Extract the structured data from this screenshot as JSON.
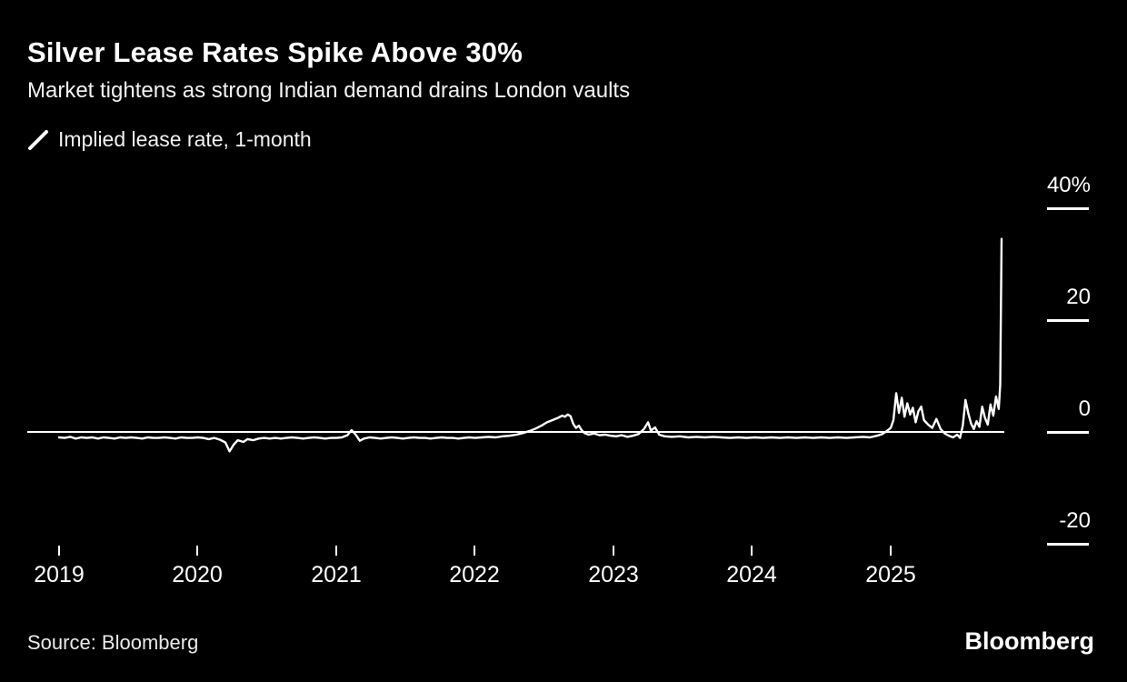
{
  "header": {
    "title": "Silver Lease Rates Spike Above 30%",
    "subtitle": "Market tightens as strong Indian demand drains London vaults"
  },
  "legend": {
    "label": "Implied lease rate, 1-month"
  },
  "footer": {
    "source": "Source: Bloomberg",
    "logo": "Bloomberg"
  },
  "colors": {
    "background": "#000000",
    "text": "#ffffff",
    "line": "#ffffff"
  },
  "chart_data": {
    "type": "line",
    "title": "Silver Lease Rates Spike Above 30%",
    "subtitle": "Market tightens as strong Indian demand drains London vaults",
    "series_name": "Implied lease rate, 1-month",
    "unit": "%",
    "xlabel": "",
    "ylabel": "Implied lease rate (%)",
    "x_range": [
      2019.0,
      2025.85
    ],
    "ylim": [
      -25,
      45
    ],
    "grid": "right-axis ticks only, zero line across plot",
    "legend_position": "top-left",
    "y_ticks": [
      {
        "value": 40,
        "label": "40%"
      },
      {
        "value": 20,
        "label": "20"
      },
      {
        "value": 0,
        "label": "0"
      },
      {
        "value": -20,
        "label": "-20"
      }
    ],
    "x_ticks": [
      {
        "value": 2019,
        "label": "2019"
      },
      {
        "value": 2020,
        "label": "2020"
      },
      {
        "value": 2021,
        "label": "2021"
      },
      {
        "value": 2022,
        "label": "2022"
      },
      {
        "value": 2023,
        "label": "2023"
      },
      {
        "value": 2024,
        "label": "2024"
      },
      {
        "value": 2025,
        "label": "2025"
      }
    ],
    "points": [
      [
        2019.0,
        -0.9
      ],
      [
        2019.04,
        -1.0
      ],
      [
        2019.08,
        -0.8
      ],
      [
        2019.12,
        -1.1
      ],
      [
        2019.16,
        -0.9
      ],
      [
        2019.2,
        -1.0
      ],
      [
        2019.24,
        -0.9
      ],
      [
        2019.28,
        -1.1
      ],
      [
        2019.32,
        -0.9
      ],
      [
        2019.36,
        -1.0
      ],
      [
        2019.4,
        -1.1
      ],
      [
        2019.44,
        -0.9
      ],
      [
        2019.48,
        -1.0
      ],
      [
        2019.52,
        -0.9
      ],
      [
        2019.56,
        -1.0
      ],
      [
        2019.6,
        -1.1
      ],
      [
        2019.64,
        -0.9
      ],
      [
        2019.68,
        -1.0
      ],
      [
        2019.72,
        -1.0
      ],
      [
        2019.76,
        -0.9
      ],
      [
        2019.8,
        -1.0
      ],
      [
        2019.84,
        -1.1
      ],
      [
        2019.88,
        -0.9
      ],
      [
        2019.92,
        -1.0
      ],
      [
        2019.96,
        -1.0
      ],
      [
        2020.0,
        -0.9
      ],
      [
        2020.04,
        -1.0
      ],
      [
        2020.08,
        -1.2
      ],
      [
        2020.12,
        -1.0
      ],
      [
        2020.16,
        -1.3
      ],
      [
        2020.2,
        -1.8
      ],
      [
        2020.23,
        -3.4
      ],
      [
        2020.26,
        -2.2
      ],
      [
        2020.29,
        -1.4
      ],
      [
        2020.33,
        -1.7
      ],
      [
        2020.36,
        -1.2
      ],
      [
        2020.4,
        -1.4
      ],
      [
        2020.44,
        -1.1
      ],
      [
        2020.48,
        -1.0
      ],
      [
        2020.52,
        -1.1
      ],
      [
        2020.56,
        -1.0
      ],
      [
        2020.6,
        -1.1
      ],
      [
        2020.64,
        -1.0
      ],
      [
        2020.68,
        -0.9
      ],
      [
        2020.72,
        -1.0
      ],
      [
        2020.76,
        -1.1
      ],
      [
        2020.8,
        -1.0
      ],
      [
        2020.84,
        -0.9
      ],
      [
        2020.88,
        -1.0
      ],
      [
        2020.92,
        -1.1
      ],
      [
        2020.96,
        -1.0
      ],
      [
        2021.0,
        -1.0
      ],
      [
        2021.04,
        -0.9
      ],
      [
        2021.08,
        -0.5
      ],
      [
        2021.11,
        0.4
      ],
      [
        2021.14,
        -0.4
      ],
      [
        2021.17,
        -1.5
      ],
      [
        2021.2,
        -1.1
      ],
      [
        2021.24,
        -0.9
      ],
      [
        2021.28,
        -1.0
      ],
      [
        2021.32,
        -1.1
      ],
      [
        2021.36,
        -1.0
      ],
      [
        2021.4,
        -0.9
      ],
      [
        2021.44,
        -1.0
      ],
      [
        2021.48,
        -1.1
      ],
      [
        2021.52,
        -1.0
      ],
      [
        2021.56,
        -0.9
      ],
      [
        2021.6,
        -1.0
      ],
      [
        2021.64,
        -1.0
      ],
      [
        2021.68,
        -1.1
      ],
      [
        2021.72,
        -1.0
      ],
      [
        2021.76,
        -0.9
      ],
      [
        2021.8,
        -1.0
      ],
      [
        2021.84,
        -1.0
      ],
      [
        2021.88,
        -1.1
      ],
      [
        2021.92,
        -1.0
      ],
      [
        2021.96,
        -0.9
      ],
      [
        2022.0,
        -1.0
      ],
      [
        2022.05,
        -0.9
      ],
      [
        2022.1,
        -0.8
      ],
      [
        2022.15,
        -0.9
      ],
      [
        2022.2,
        -0.7
      ],
      [
        2022.25,
        -0.6
      ],
      [
        2022.3,
        -0.4
      ],
      [
        2022.35,
        -0.1
      ],
      [
        2022.4,
        0.3
      ],
      [
        2022.44,
        0.7
      ],
      [
        2022.48,
        1.2
      ],
      [
        2022.52,
        1.8
      ],
      [
        2022.56,
        2.2
      ],
      [
        2022.6,
        2.6
      ],
      [
        2022.63,
        3.0
      ],
      [
        2022.65,
        2.8
      ],
      [
        2022.67,
        3.2
      ],
      [
        2022.69,
        2.9
      ],
      [
        2022.71,
        1.5
      ],
      [
        2022.73,
        0.8
      ],
      [
        2022.75,
        1.2
      ],
      [
        2022.77,
        0.4
      ],
      [
        2022.79,
        -0.1
      ],
      [
        2022.82,
        -0.4
      ],
      [
        2022.86,
        -0.2
      ],
      [
        2022.9,
        -0.5
      ],
      [
        2022.94,
        -0.4
      ],
      [
        2022.98,
        -0.6
      ],
      [
        2023.02,
        -0.7
      ],
      [
        2023.06,
        -0.5
      ],
      [
        2023.1,
        -0.8
      ],
      [
        2023.14,
        -0.6
      ],
      [
        2023.18,
        -0.3
      ],
      [
        2023.22,
        0.6
      ],
      [
        2023.25,
        1.8
      ],
      [
        2023.27,
        0.3
      ],
      [
        2023.3,
        0.9
      ],
      [
        2023.33,
        -0.4
      ],
      [
        2023.37,
        -0.7
      ],
      [
        2023.42,
        -0.8
      ],
      [
        2023.48,
        -0.7
      ],
      [
        2023.54,
        -0.9
      ],
      [
        2023.6,
        -0.8
      ],
      [
        2023.66,
        -0.9
      ],
      [
        2023.72,
        -0.8
      ],
      [
        2023.78,
        -0.9
      ],
      [
        2023.84,
        -1.0
      ],
      [
        2023.9,
        -0.9
      ],
      [
        2023.96,
        -1.0
      ],
      [
        2024.02,
        -0.9
      ],
      [
        2024.08,
        -1.0
      ],
      [
        2024.14,
        -0.9
      ],
      [
        2024.2,
        -1.0
      ],
      [
        2024.26,
        -0.9
      ],
      [
        2024.32,
        -1.0
      ],
      [
        2024.38,
        -0.9
      ],
      [
        2024.44,
        -1.0
      ],
      [
        2024.5,
        -0.9
      ],
      [
        2024.56,
        -1.0
      ],
      [
        2024.62,
        -0.9
      ],
      [
        2024.68,
        -1.0
      ],
      [
        2024.74,
        -0.9
      ],
      [
        2024.8,
        -0.8
      ],
      [
        2024.85,
        -0.9
      ],
      [
        2024.9,
        -0.6
      ],
      [
        2024.94,
        -0.3
      ],
      [
        2024.97,
        0.2
      ],
      [
        2025.0,
        0.8
      ],
      [
        2025.02,
        2.2
      ],
      [
        2025.04,
        7.0
      ],
      [
        2025.06,
        3.5
      ],
      [
        2025.08,
        6.2
      ],
      [
        2025.1,
        2.8
      ],
      [
        2025.12,
        5.2
      ],
      [
        2025.14,
        3.2
      ],
      [
        2025.16,
        4.4
      ],
      [
        2025.18,
        1.8
      ],
      [
        2025.2,
        3.8
      ],
      [
        2025.22,
        4.6
      ],
      [
        2025.24,
        2.2
      ],
      [
        2025.27,
        1.4
      ],
      [
        2025.3,
        0.8
      ],
      [
        2025.33,
        2.4
      ],
      [
        2025.36,
        0.6
      ],
      [
        2025.39,
        -0.2
      ],
      [
        2025.42,
        -0.6
      ],
      [
        2025.45,
        -0.9
      ],
      [
        2025.48,
        -0.4
      ],
      [
        2025.5,
        -1.0
      ],
      [
        2025.52,
        1.2
      ],
      [
        2025.54,
        5.8
      ],
      [
        2025.56,
        3.4
      ],
      [
        2025.58,
        1.6
      ],
      [
        2025.6,
        0.6
      ],
      [
        2025.62,
        2.0
      ],
      [
        2025.64,
        1.0
      ],
      [
        2025.66,
        4.6
      ],
      [
        2025.68,
        2.6
      ],
      [
        2025.7,
        1.4
      ],
      [
        2025.72,
        5.0
      ],
      [
        2025.74,
        3.0
      ],
      [
        2025.76,
        6.4
      ],
      [
        2025.78,
        4.2
      ],
      [
        2025.79,
        8.5
      ],
      [
        2025.8,
        34.6
      ]
    ]
  }
}
